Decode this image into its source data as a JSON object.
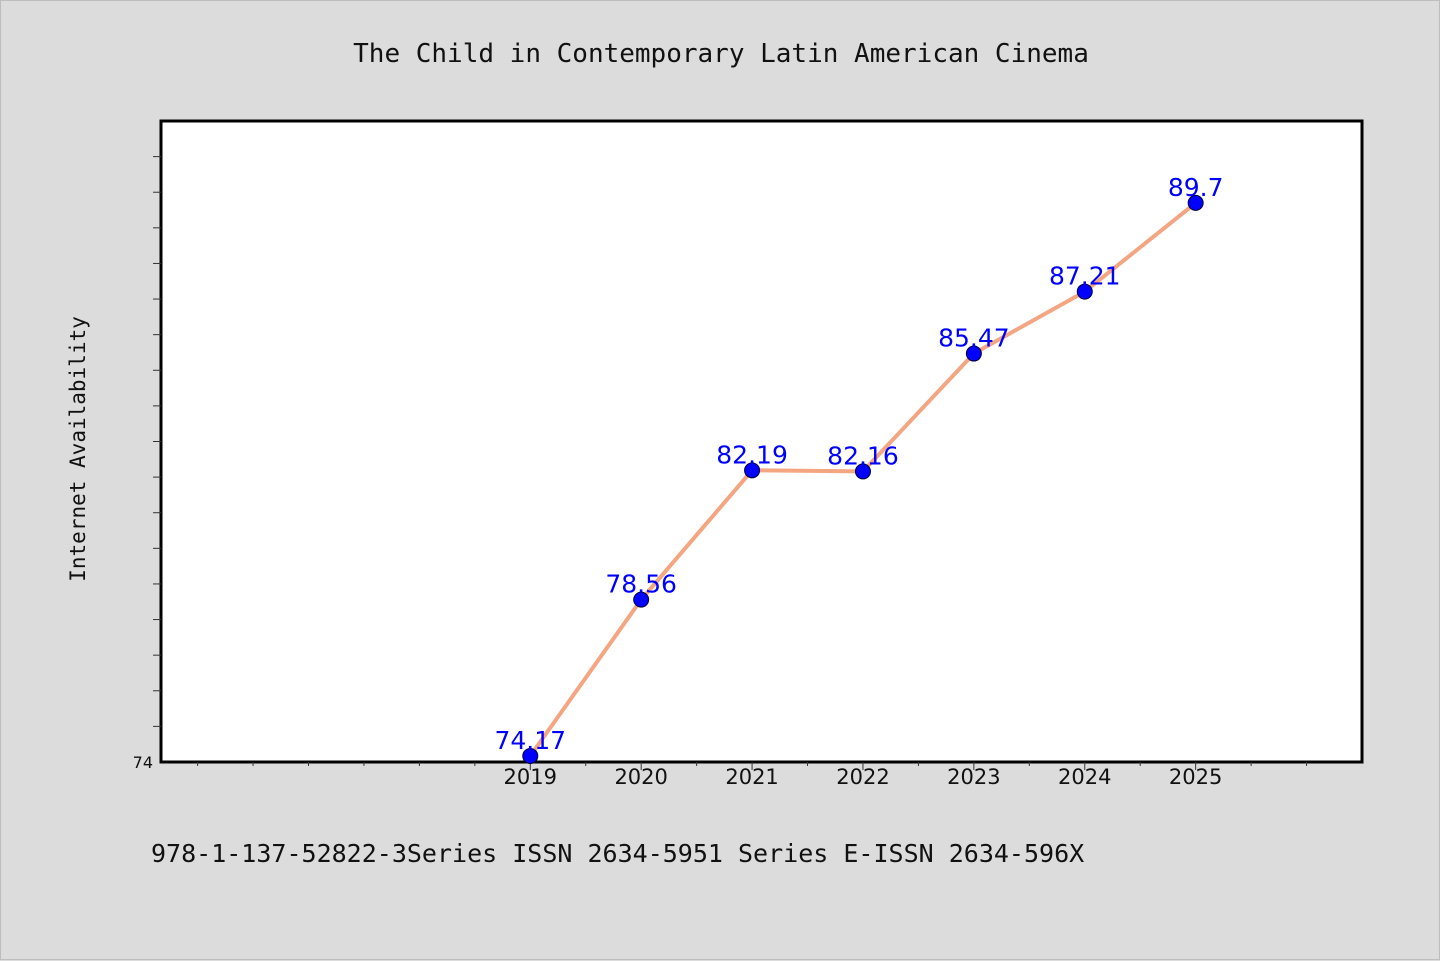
{
  "chart_data": {
    "type": "line",
    "title": "The Child in Contemporary Latin American Cinema",
    "ylabel": "Internet Availability",
    "xlabel": "",
    "x": [
      "2019",
      "2020",
      "2021",
      "2022",
      "2023",
      "2024",
      "2025"
    ],
    "series": [
      {
        "values": [
          74.17,
          78.56,
          82.19,
          82.16,
          85.47,
          87.21,
          89.7
        ]
      }
    ],
    "data_labels": [
      "74.17",
      "78.56",
      "82.19",
      "82.16",
      "85.47",
      "87.21",
      "89.7"
    ],
    "y_tick_labels": [
      "74"
    ],
    "xlim": [
      2015.67,
      2026.5
    ],
    "ylim": [
      74,
      92
    ],
    "grid": false,
    "legend": "none",
    "colors": {
      "line": "#f4a582",
      "marker": "#0000ff",
      "label": "#0000ff",
      "background": "#dcdcdc",
      "plot_background": "#ffffff"
    }
  },
  "footnote": "978-1-137-52822-3Series ISSN 2634-5951 Series E-ISSN 2634-596X"
}
